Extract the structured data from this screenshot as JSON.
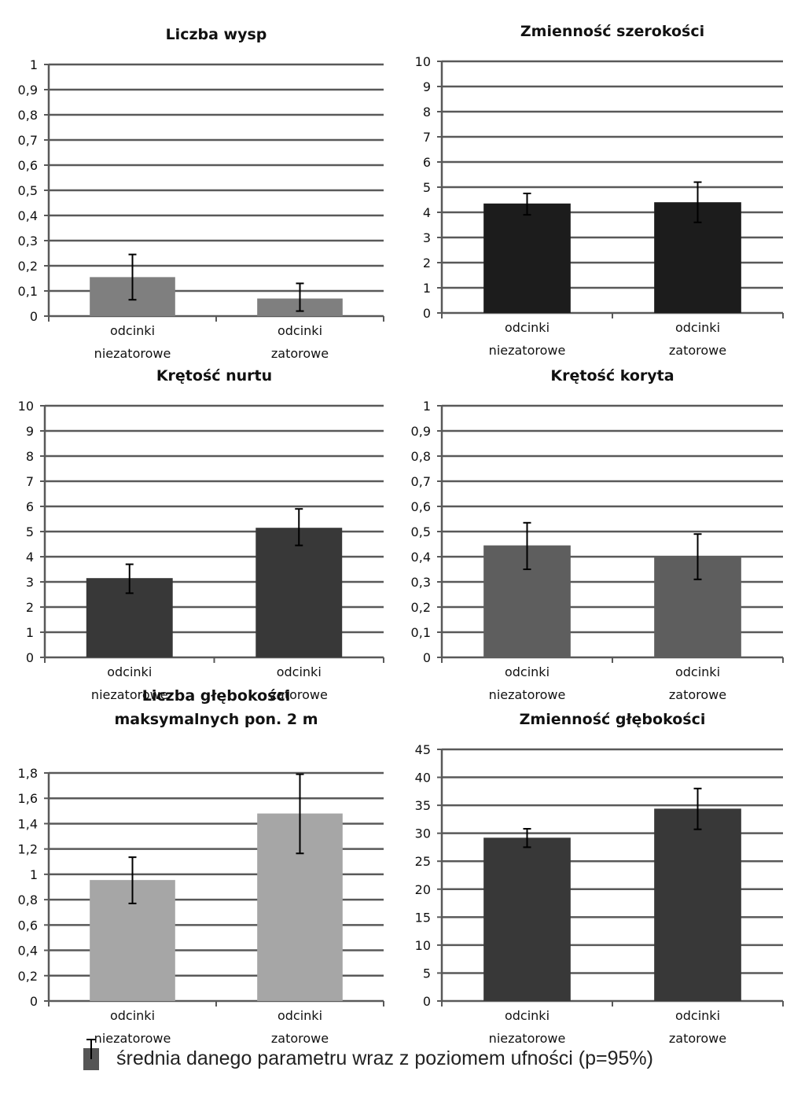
{
  "chart_data": [
    {
      "type": "bar",
      "title": [
        "Liczba wysp"
      ],
      "categories": [
        [
          "odcinki",
          "niezatorowe"
        ],
        [
          "odcinki",
          "zatorowe"
        ]
      ],
      "values": [
        0.155,
        0.07
      ],
      "error_low": [
        0.065,
        0.02
      ],
      "error_high": [
        0.245,
        0.13
      ],
      "ylim": [
        0,
        1
      ],
      "ystep": 0.1,
      "yticks": [
        "0",
        "0,1",
        "0,2",
        "0,3",
        "0,4",
        "0,5",
        "0,6",
        "0,7",
        "0,8",
        "0,9",
        "1"
      ],
      "bar_color": "#7f7f7f",
      "grid": true
    },
    {
      "type": "bar",
      "title": [
        "Zmienność szerokości"
      ],
      "categories": [
        [
          "odcinki",
          "niezatorowe"
        ],
        [
          "odcinki",
          "zatorowe"
        ]
      ],
      "values": [
        4.35,
        4.4
      ],
      "error_low": [
        3.9,
        3.6
      ],
      "error_high": [
        4.75,
        5.2
      ],
      "ylim": [
        0,
        10
      ],
      "ystep": 1,
      "yticks": [
        "0",
        "1",
        "2",
        "3",
        "4",
        "5",
        "6",
        "7",
        "8",
        "9",
        "10"
      ],
      "bar_color": "#1c1c1c",
      "grid": true
    },
    {
      "type": "bar",
      "title": [
        "Krętość nurtu"
      ],
      "categories": [
        [
          "odcinki",
          "niezatorowe"
        ],
        [
          "odcinki",
          "zatorowe"
        ]
      ],
      "values": [
        3.15,
        5.15
      ],
      "error_low": [
        2.55,
        4.45
      ],
      "error_high": [
        3.7,
        5.9
      ],
      "ylim": [
        0,
        10
      ],
      "ystep": 1,
      "yticks": [
        "0",
        "1",
        "2",
        "3",
        "4",
        "5",
        "6",
        "7",
        "8",
        "9",
        "10"
      ],
      "bar_color": "#383838",
      "grid": true
    },
    {
      "type": "bar",
      "title": [
        "Krętość koryta"
      ],
      "categories": [
        [
          "odcinki",
          "niezatorowe"
        ],
        [
          "odcinki",
          "zatorowe"
        ]
      ],
      "values": [
        0.445,
        0.4
      ],
      "error_low": [
        0.35,
        0.31
      ],
      "error_high": [
        0.535,
        0.49
      ],
      "ylim": [
        0,
        1
      ],
      "ystep": 0.1,
      "yticks": [
        "0",
        "0,1",
        "0,2",
        "0,3",
        "0,4",
        "0,5",
        "0,6",
        "0,7",
        "0,8",
        "0,9",
        "1"
      ],
      "bar_color": "#5e5e5e",
      "grid": true
    },
    {
      "type": "bar",
      "title": [
        "Liczba głębokości",
        "maksymalnych pon. 2 m"
      ],
      "categories": [
        [
          "odcinki",
          "niezatorowe"
        ],
        [
          "odcinki",
          "zatorowe"
        ]
      ],
      "values": [
        0.955,
        1.48
      ],
      "error_low": [
        0.77,
        1.165
      ],
      "error_high": [
        1.135,
        1.79
      ],
      "ylim": [
        0,
        1.8
      ],
      "ystep": 0.2,
      "yticks": [
        "0",
        "0,2",
        "0,4",
        "0,6",
        "0,8",
        "1",
        "1,2",
        "1,4",
        "1,6",
        "1,8"
      ],
      "bar_color": "#a6a6a6",
      "grid": true
    },
    {
      "type": "bar",
      "title": [
        "Zmienność głębokości"
      ],
      "categories": [
        [
          "odcinki",
          "niezatorowe"
        ],
        [
          "odcinki",
          "zatorowe"
        ]
      ],
      "values": [
        29.2,
        34.4
      ],
      "error_low": [
        27.5,
        30.7
      ],
      "error_high": [
        30.8,
        38
      ],
      "ylim": [
        0,
        45
      ],
      "ystep": 5,
      "yticks": [
        "0",
        "5",
        "10",
        "15",
        "20",
        "25",
        "30",
        "35",
        "40",
        "45"
      ],
      "bar_color": "#383838",
      "grid": true
    }
  ],
  "legend": {
    "text": "średnia danego parametru wraz z poziomem ufności (p=95%)",
    "swatch_color": "#555555"
  }
}
